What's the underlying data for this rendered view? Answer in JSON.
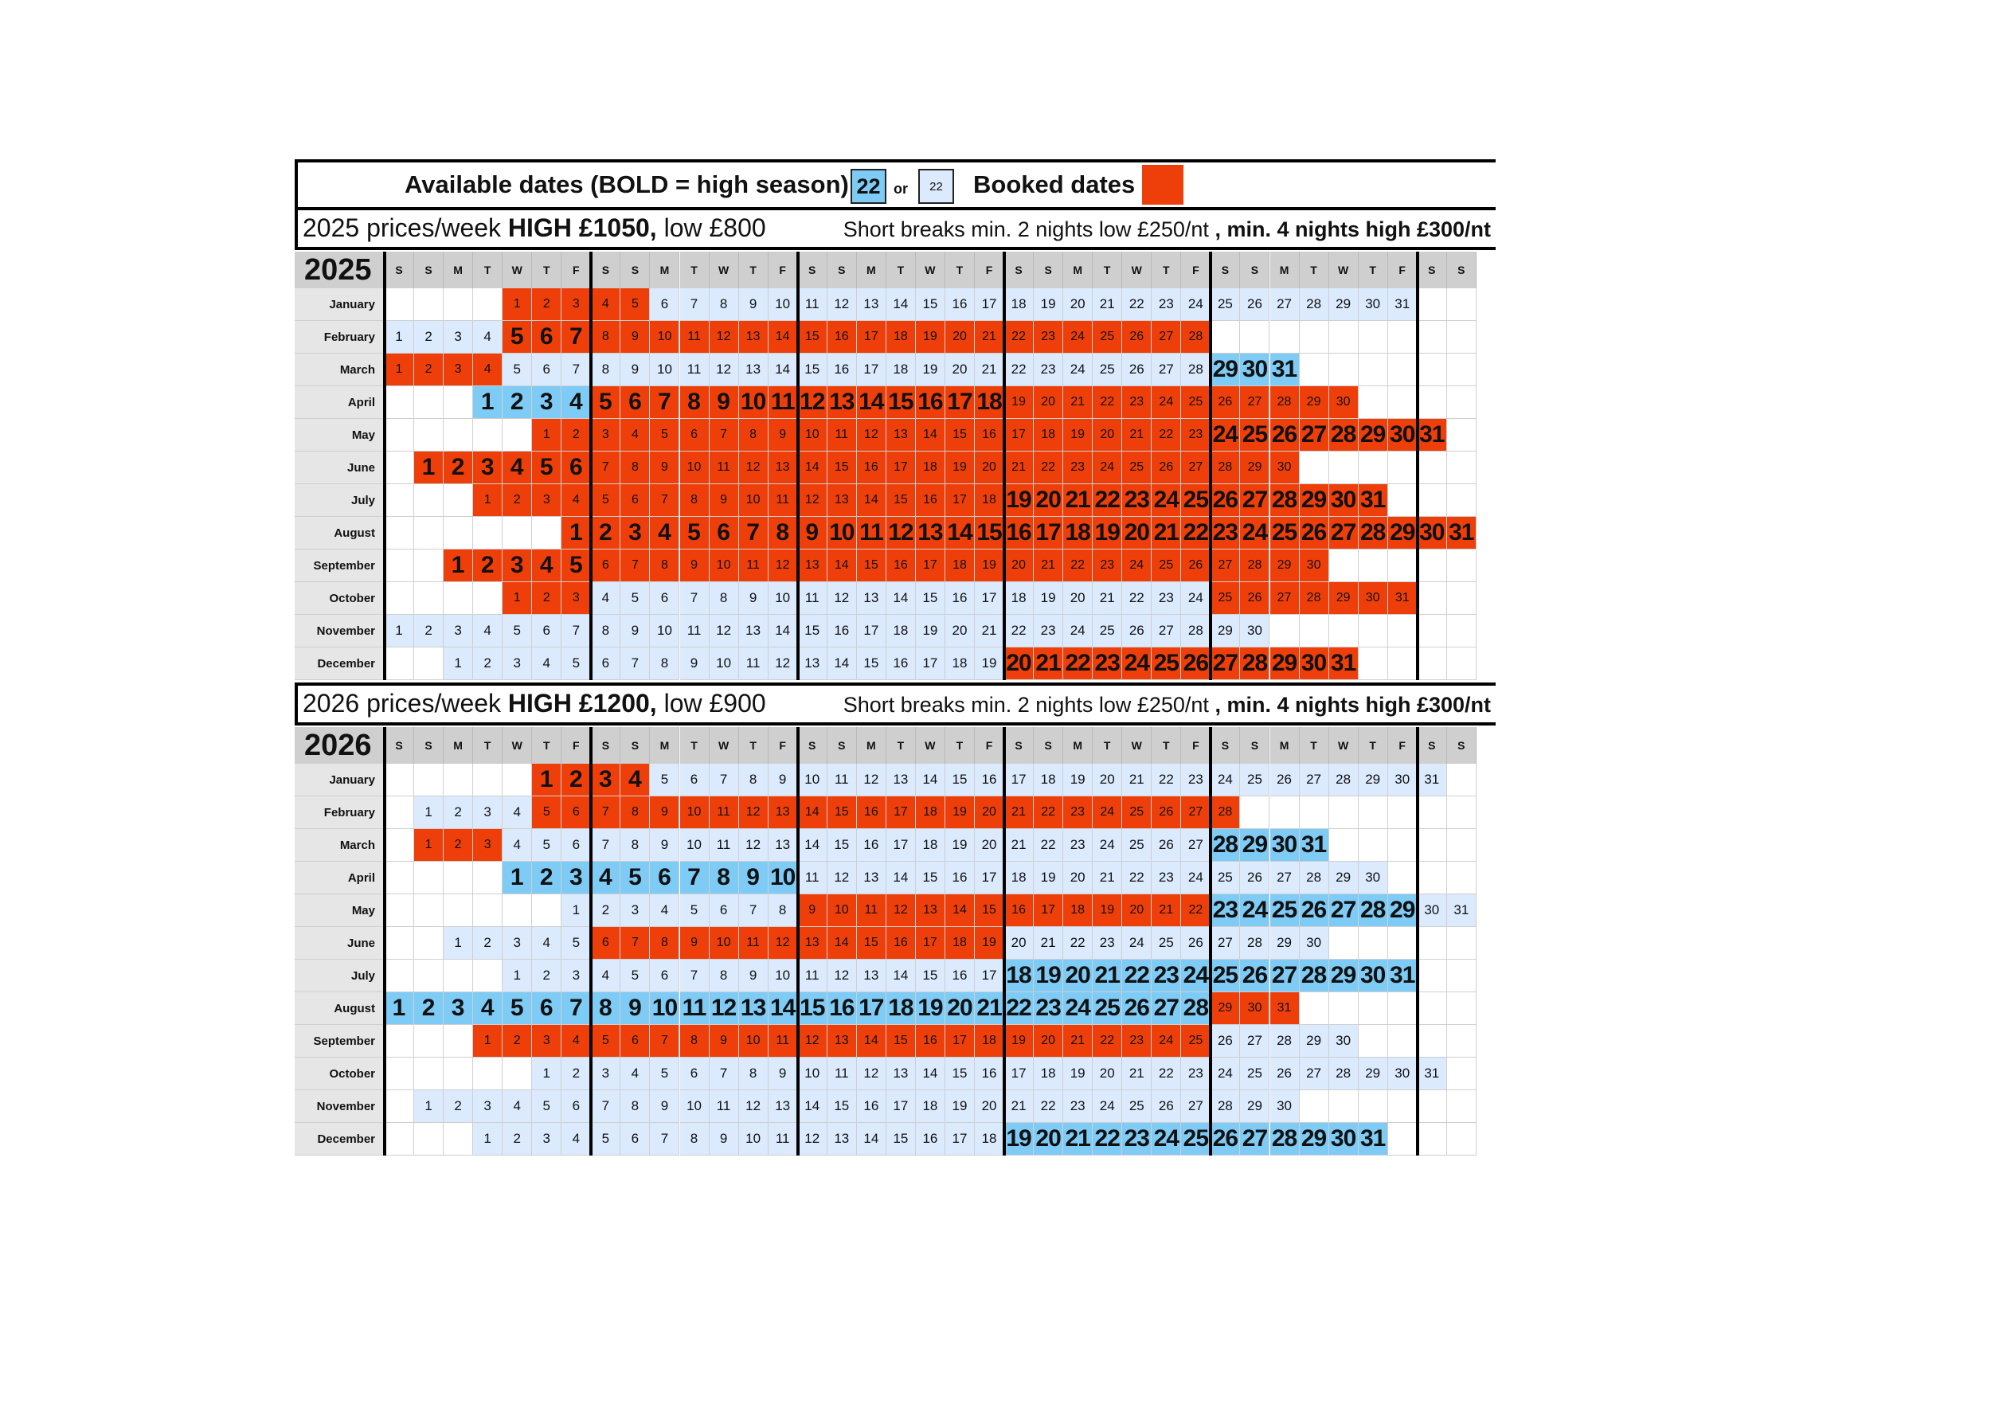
{
  "legend": {
    "available_text": "Available dates (BOLD = high season)",
    "high_sample": "22",
    "or_text": "or",
    "low_sample": "22",
    "booked_text": "Booked dates"
  },
  "colors": {
    "low_available": "#dbeafd",
    "high_available": "#7ecbf6",
    "booked": "#ee3f0b",
    "header_grey": "#cfcfcf"
  },
  "weekday_headers": [
    "S",
    "S",
    "M",
    "T",
    "W",
    "T",
    "F",
    "S",
    "S",
    "M",
    "T",
    "W",
    "T",
    "F",
    "S",
    "S",
    "M",
    "T",
    "W",
    "T",
    "F",
    "S",
    "S",
    "M",
    "T",
    "W",
    "T",
    "F",
    "S",
    "S",
    "M",
    "T",
    "W",
    "T",
    "F",
    "S",
    "S"
  ],
  "years": [
    {
      "year": "2025",
      "prices": {
        "lead": "2025 prices/week ",
        "high": "HIGH £1050,",
        "low": " low £800",
        "short_lead": "Short breaks min. 2 nights low £250/nt",
        "short_high": " , min. 4 nights high £300/nt"
      },
      "months": [
        {
          "name": "January",
          "start": 4,
          "days": 31,
          "ranges": [
            [
              "b",
              1,
              5
            ],
            [
              "l",
              6,
              31
            ]
          ]
        },
        {
          "name": "February",
          "start": 0,
          "days": 28,
          "ranges": [
            [
              "l",
              1,
              4
            ],
            [
              "B",
              5,
              7
            ],
            [
              "b",
              8,
              28
            ]
          ]
        },
        {
          "name": "March",
          "start": 0,
          "days": 31,
          "ranges": [
            [
              "b",
              1,
              4
            ],
            [
              "l",
              5,
              28
            ],
            [
              "h",
              29,
              31
            ]
          ]
        },
        {
          "name": "April",
          "start": 3,
          "days": 30,
          "ranges": [
            [
              "h",
              1,
              4
            ],
            [
              "B",
              5,
              18
            ],
            [
              "b",
              19,
              30
            ]
          ]
        },
        {
          "name": "May",
          "start": 5,
          "days": 31,
          "ranges": [
            [
              "b",
              1,
              23
            ],
            [
              "B",
              24,
              31
            ]
          ]
        },
        {
          "name": "June",
          "start": 1,
          "days": 30,
          "ranges": [
            [
              "B",
              1,
              6
            ],
            [
              "b",
              7,
              30
            ]
          ]
        },
        {
          "name": "July",
          "start": 3,
          "days": 31,
          "ranges": [
            [
              "b",
              1,
              18
            ],
            [
              "B",
              19,
              31
            ]
          ]
        },
        {
          "name": "August",
          "start": 6,
          "days": 31,
          "ranges": [
            [
              "B",
              1,
              31
            ]
          ]
        },
        {
          "name": "September",
          "start": 2,
          "days": 30,
          "ranges": [
            [
              "B",
              1,
              5
            ],
            [
              "b",
              6,
              30
            ]
          ]
        },
        {
          "name": "October",
          "start": 4,
          "days": 31,
          "ranges": [
            [
              "b",
              1,
              3
            ],
            [
              "l",
              4,
              24
            ],
            [
              "b",
              25,
              31
            ]
          ]
        },
        {
          "name": "November",
          "start": 0,
          "days": 30,
          "ranges": [
            [
              "l",
              1,
              30
            ]
          ]
        },
        {
          "name": "December",
          "start": 2,
          "days": 31,
          "ranges": [
            [
              "l",
              1,
              19
            ],
            [
              "B",
              20,
              31
            ]
          ]
        }
      ]
    },
    {
      "year": "2026",
      "prices": {
        "lead": "2026 prices/week ",
        "high": "HIGH £1200,",
        "low": " low £900",
        "short_lead": "Short breaks min. 2 nights low £250/nt",
        "short_high": " , min. 4 nights high £300/nt"
      },
      "months": [
        {
          "name": "January",
          "start": 5,
          "days": 31,
          "ranges": [
            [
              "B",
              1,
              4
            ],
            [
              "l",
              5,
              31
            ]
          ]
        },
        {
          "name": "February",
          "start": 1,
          "days": 28,
          "ranges": [
            [
              "l",
              1,
              4
            ],
            [
              "b",
              5,
              28
            ]
          ]
        },
        {
          "name": "March",
          "start": 1,
          "days": 31,
          "ranges": [
            [
              "b",
              1,
              3
            ],
            [
              "l",
              4,
              27
            ],
            [
              "h",
              28,
              31
            ]
          ]
        },
        {
          "name": "April",
          "start": 4,
          "days": 30,
          "ranges": [
            [
              "h",
              1,
              10
            ],
            [
              "l",
              11,
              30
            ]
          ]
        },
        {
          "name": "May",
          "start": 6,
          "days": 31,
          "ranges": [
            [
              "l",
              1,
              8
            ],
            [
              "b",
              9,
              22
            ],
            [
              "h",
              23,
              29
            ],
            [
              "l",
              30,
              31
            ]
          ]
        },
        {
          "name": "June",
          "start": 2,
          "days": 30,
          "ranges": [
            [
              "l",
              1,
              5
            ],
            [
              "b",
              6,
              19
            ],
            [
              "l",
              20,
              30
            ]
          ]
        },
        {
          "name": "July",
          "start": 4,
          "days": 31,
          "ranges": [
            [
              "l",
              1,
              17
            ],
            [
              "h",
              18,
              31
            ]
          ]
        },
        {
          "name": "August",
          "start": 0,
          "days": 31,
          "ranges": [
            [
              "h",
              1,
              28
            ],
            [
              "b",
              29,
              31
            ]
          ]
        },
        {
          "name": "September",
          "start": 3,
          "days": 30,
          "ranges": [
            [
              "b",
              1,
              25
            ],
            [
              "l",
              26,
              30
            ]
          ]
        },
        {
          "name": "October",
          "start": 5,
          "days": 31,
          "ranges": [
            [
              "l",
              1,
              31
            ]
          ]
        },
        {
          "name": "November",
          "start": 1,
          "days": 30,
          "ranges": [
            [
              "l",
              1,
              30
            ]
          ]
        },
        {
          "name": "December",
          "start": 3,
          "days": 31,
          "ranges": [
            [
              "l",
              1,
              18
            ],
            [
              "h",
              19,
              31
            ]
          ]
        }
      ]
    }
  ]
}
